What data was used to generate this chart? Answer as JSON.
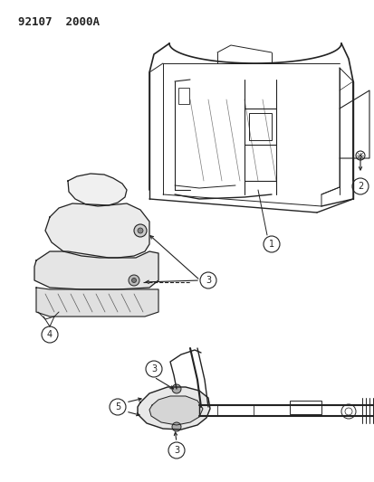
{
  "title_code": "92107  2000A",
  "background_color": "#ffffff",
  "line_color": "#222222",
  "fig_width": 4.14,
  "fig_height": 5.33,
  "dpi": 100
}
